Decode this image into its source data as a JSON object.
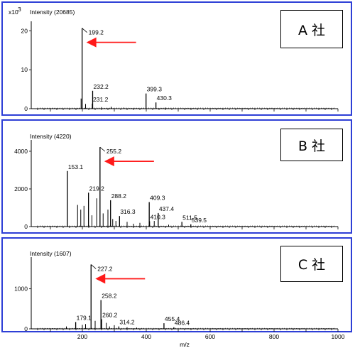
{
  "chart_data": [
    {
      "type": "line",
      "panel": "A",
      "label": "A 社",
      "intensity_label": "Intensity (20685)",
      "y_multiplier_label": "x10",
      "y_multiplier_exp": "3",
      "ylim": [
        0,
        21
      ],
      "yticks": [
        0,
        10,
        20
      ],
      "xlim": [
        40,
        1000
      ],
      "arrow_at": 199.2,
      "peaks": [
        {
          "x": 199.2,
          "y": 20.7,
          "label": "199.2"
        },
        {
          "x": 232.2,
          "y": 4.6,
          "label": "232.2"
        },
        {
          "x": 231.2,
          "y": 1.3,
          "label": "231.2"
        },
        {
          "x": 399.3,
          "y": 3.9,
          "label": "399.3"
        },
        {
          "x": 430.3,
          "y": 1.6,
          "label": "430.3"
        }
      ],
      "minor": [
        [
          196,
          2.6
        ],
        [
          210,
          1.2
        ],
        [
          260,
          0.4
        ],
        [
          290,
          0.5
        ],
        [
          330,
          0.3
        ],
        [
          460,
          0.3
        ]
      ]
    },
    {
      "type": "line",
      "panel": "B",
      "label": "B 社",
      "intensity_label": "Intensity (4220)",
      "ylim": [
        0,
        4300
      ],
      "yticks": [
        0,
        2000,
        4000
      ],
      "xlim": [
        40,
        1000
      ],
      "arrow_at": 255.2,
      "peaks": [
        {
          "x": 255.2,
          "y": 4220,
          "label": "255.2"
        },
        {
          "x": 153.1,
          "y": 2950,
          "label": "153.1"
        },
        {
          "x": 219.2,
          "y": 1800,
          "label": "219.2"
        },
        {
          "x": 288.2,
          "y": 1400,
          "label": "288.2"
        },
        {
          "x": 316.3,
          "y": 560,
          "label": "316.3"
        },
        {
          "x": 409.3,
          "y": 1300,
          "label": "409.3"
        },
        {
          "x": 410.3,
          "y": 280,
          "label": "410.3"
        },
        {
          "x": 437.4,
          "y": 720,
          "label": "437.4"
        },
        {
          "x": 511.5,
          "y": 250,
          "label": "511.5"
        },
        {
          "x": 539.5,
          "y": 120,
          "label": "539.5"
        }
      ],
      "minor": [
        [
          185,
          1150
        ],
        [
          195,
          900
        ],
        [
          205,
          1100
        ],
        [
          230,
          600
        ],
        [
          245,
          1500
        ],
        [
          265,
          700
        ],
        [
          280,
          900
        ],
        [
          295,
          400
        ],
        [
          305,
          300
        ],
        [
          340,
          250
        ],
        [
          360,
          150
        ],
        [
          380,
          200
        ],
        [
          425,
          300
        ],
        [
          470,
          100
        ]
      ]
    },
    {
      "type": "line",
      "panel": "C",
      "label": "C 社",
      "intensity_label": "Intensity (1607)",
      "ylim": [
        0,
        1650
      ],
      "yticks": [
        0,
        1000
      ],
      "xlim": [
        40,
        1000
      ],
      "xticks": [
        200,
        400,
        600,
        800,
        1000
      ],
      "xlabel": "m/z",
      "arrow_at": 227.2,
      "peaks": [
        {
          "x": 227.2,
          "y": 1607,
          "label": "227.2"
        },
        {
          "x": 258.2,
          "y": 720,
          "label": "258.2"
        },
        {
          "x": 179.1,
          "y": 170,
          "label": "179.1"
        },
        {
          "x": 260.2,
          "y": 240,
          "label": "260.2"
        },
        {
          "x": 314.2,
          "y": 60,
          "label": "314.2"
        },
        {
          "x": 455.4,
          "y": 140,
          "label": "455.4"
        },
        {
          "x": 486.4,
          "y": 40,
          "label": "486.4"
        }
      ],
      "minor": [
        [
          150,
          60
        ],
        [
          200,
          100
        ],
        [
          210,
          120
        ],
        [
          240,
          200
        ],
        [
          275,
          150
        ],
        [
          285,
          60
        ],
        [
          300,
          90
        ],
        [
          340,
          40
        ],
        [
          370,
          30
        ]
      ]
    }
  ]
}
